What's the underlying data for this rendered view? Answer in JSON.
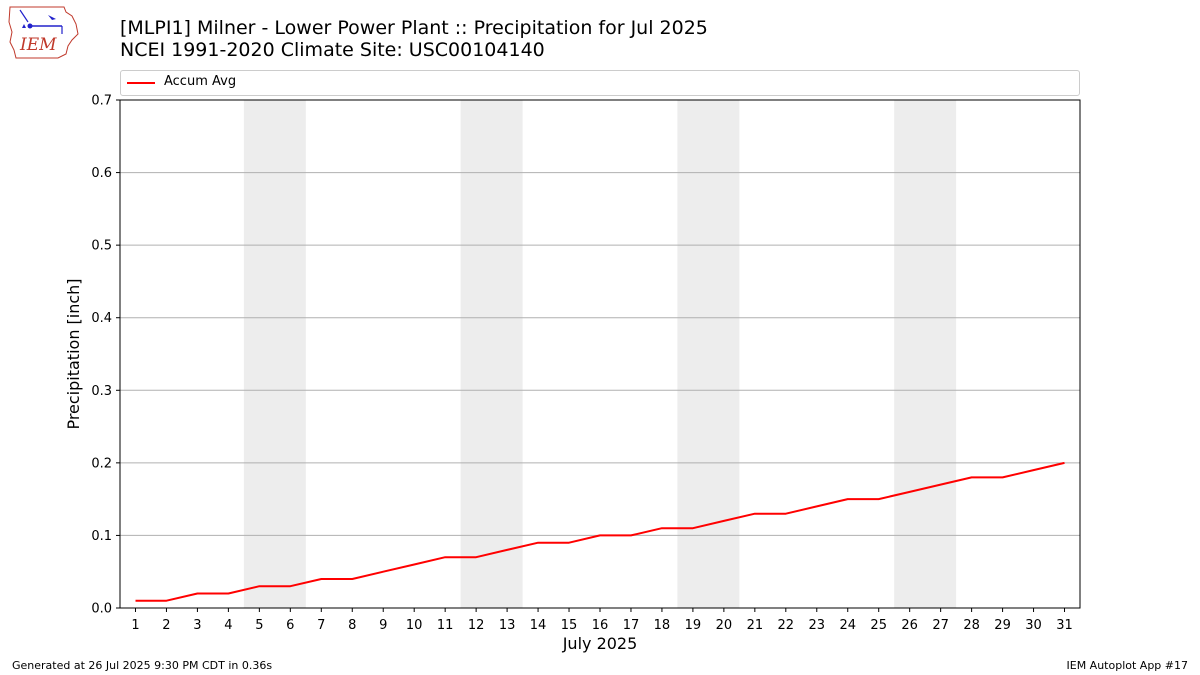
{
  "logo": {
    "text": "IEM"
  },
  "header": {
    "title_line1": "[MLPI1] Milner - Lower Power Plant :: Precipitation for Jul 2025",
    "title_line2": "NCEI 1991-2020 Climate Site: USC00104140"
  },
  "legend": {
    "entries": [
      {
        "label": "Accum Avg",
        "color": "#ff0000"
      }
    ]
  },
  "chart_data": {
    "type": "line",
    "x": [
      1,
      2,
      3,
      4,
      5,
      6,
      7,
      8,
      9,
      10,
      11,
      12,
      13,
      14,
      15,
      16,
      17,
      18,
      19,
      20,
      21,
      22,
      23,
      24,
      25,
      26,
      27,
      28,
      29,
      30,
      31
    ],
    "series": [
      {
        "name": "Accum Avg",
        "color": "#ff0000",
        "values": [
          0.01,
          0.01,
          0.02,
          0.02,
          0.03,
          0.03,
          0.04,
          0.04,
          0.05,
          0.06,
          0.07,
          0.07,
          0.08,
          0.09,
          0.09,
          0.1,
          0.1,
          0.11,
          0.11,
          0.12,
          0.13,
          0.13,
          0.14,
          0.15,
          0.15,
          0.16,
          0.17,
          0.18,
          0.18,
          0.19,
          0.2
        ]
      }
    ],
    "xlabel": "July 2025",
    "ylabel": "Precipitation [inch]",
    "xlim": [
      0.5,
      31.5
    ],
    "ylim": [
      0,
      0.7
    ],
    "yticks": [
      0.0,
      0.1,
      0.2,
      0.3,
      0.4,
      0.5,
      0.6,
      0.7
    ],
    "ytick_labels": [
      "0.0",
      "0.1",
      "0.2",
      "0.3",
      "0.4",
      "0.5",
      "0.6",
      "0.7"
    ],
    "xtick_labels": [
      "1",
      "2",
      "3",
      "4",
      "5",
      "6",
      "7",
      "8",
      "9",
      "10",
      "11",
      "12",
      "13",
      "14",
      "15",
      "16",
      "17",
      "18",
      "19",
      "20",
      "21",
      "22",
      "23",
      "24",
      "25",
      "26",
      "27",
      "28",
      "29",
      "30",
      "31"
    ],
    "weekend_shading": [
      [
        5,
        6
      ],
      [
        12,
        13
      ],
      [
        19,
        20
      ],
      [
        26,
        27
      ]
    ],
    "shading_color": "#ededed",
    "grid": "horizontal",
    "legend_position": "top"
  },
  "footer": {
    "generated": "Generated at 26 Jul 2025 9:30 PM CDT in 0.36s",
    "app": "IEM Autoplot App #17"
  }
}
